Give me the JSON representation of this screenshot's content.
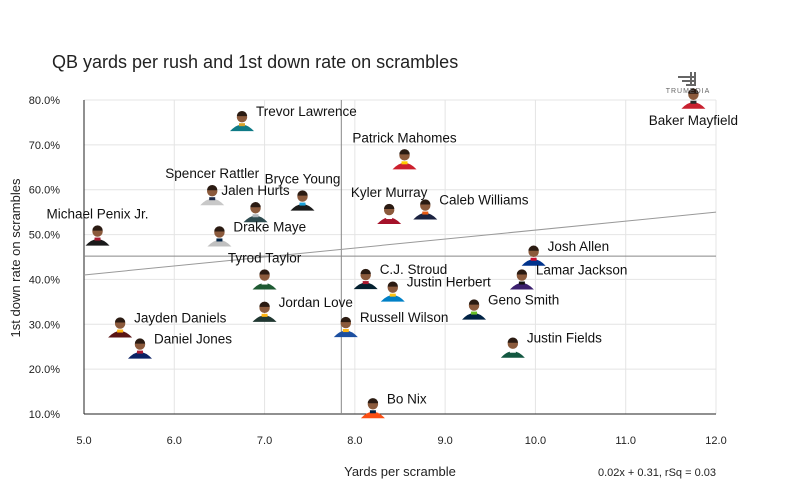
{
  "chart_data": {
    "type": "scatter",
    "title": "QB yards per rush and 1st down rate on scrambles",
    "xlabel": "Yards per scramble",
    "ylabel": "1st down rate on scrambles",
    "xlim": [
      5.0,
      12.0
    ],
    "ylim": [
      10.0,
      80.0
    ],
    "x_ticks": [
      "5.0",
      "6.0",
      "7.0",
      "8.0",
      "9.0",
      "10.0",
      "11.0",
      "12.0"
    ],
    "y_ticks": [
      "10.0%",
      "20.0%",
      "30.0%",
      "40.0%",
      "50.0%",
      "60.0%",
      "70.0%",
      "80.0%"
    ],
    "grid": true,
    "mean_x": 7.85,
    "mean_y": 45.2,
    "regression": {
      "slope": 0.02,
      "intercept": 0.31,
      "rsq": 0.03,
      "text": "0.02x + 0.31, rSq = 0.03"
    },
    "logo_text": "TRUMEDIA",
    "points": [
      {
        "name": "Trevor Lawrence",
        "x": 6.75,
        "y": 75.5,
        "helmet": "#0f7a86",
        "accent": "#d7a22a",
        "label_side": "right"
      },
      {
        "name": "Patrick Mahomes",
        "x": 8.55,
        "y": 67.0,
        "helmet": "#cc1f2d",
        "accent": "#ffcc00",
        "label_side": "above"
      },
      {
        "name": "Baker Mayfield",
        "x": 11.75,
        "y": 80.5,
        "helmet": "#c8202f",
        "accent": "#2a2a2a",
        "label_side": "below"
      },
      {
        "name": "Spencer Rattler",
        "x": 6.42,
        "y": 59.0,
        "helmet": "#c8c8c8",
        "accent": "#1f2c4a",
        "label_side": "above"
      },
      {
        "name": "Bryce Young",
        "x": 7.42,
        "y": 57.8,
        "helmet": "#1b1b1b",
        "accent": "#1aa0d8",
        "label_side": "above"
      },
      {
        "name": "Jalen Hurts",
        "x": 6.9,
        "y": 55.2,
        "helmet": "#2e4b4f",
        "accent": "#b0b7bc",
        "label_side": "above"
      },
      {
        "name": "Kyler Murray",
        "x": 8.38,
        "y": 54.8,
        "helmet": "#a5122a",
        "accent": "#ffffff",
        "label_side": "above"
      },
      {
        "name": "Caleb Williams",
        "x": 8.78,
        "y": 55.8,
        "helmet": "#1a2240",
        "accent": "#e85a13",
        "label_side": "right"
      },
      {
        "name": "Michael Penix Jr.",
        "x": 5.15,
        "y": 50.0,
        "helmet": "#1a1a1a",
        "accent": "#a71930",
        "label_side": "above"
      },
      {
        "name": "Drake Maye",
        "x": 6.5,
        "y": 49.8,
        "helmet": "#c0c0c0",
        "accent": "#002244",
        "label_side": "right"
      },
      {
        "name": "Josh Allen",
        "x": 9.98,
        "y": 45.5,
        "helmet": "#00338d",
        "accent": "#c60c30",
        "label_side": "right"
      },
      {
        "name": "Lamar Jackson",
        "x": 9.85,
        "y": 40.2,
        "helmet": "#3b1f6e",
        "accent": "#111111",
        "label_side": "right"
      },
      {
        "name": "Tyrod Taylor",
        "x": 7.0,
        "y": 40.2,
        "helmet": "#1e5a32",
        "accent": "#ffffff",
        "label_side": "above"
      },
      {
        "name": "C.J. Stroud",
        "x": 8.12,
        "y": 40.3,
        "helmet": "#03202f",
        "accent": "#a71930",
        "label_side": "right"
      },
      {
        "name": "Justin Herbert",
        "x": 8.42,
        "y": 37.5,
        "helmet": "#0080c6",
        "accent": "#ffc20e",
        "label_side": "right"
      },
      {
        "name": "Geno Smith",
        "x": 9.32,
        "y": 33.5,
        "helmet": "#002244",
        "accent": "#69be28",
        "label_side": "right"
      },
      {
        "name": "Jordan Love",
        "x": 7.0,
        "y": 33.0,
        "helmet": "#203731",
        "accent": "#ffb612",
        "label_side": "right"
      },
      {
        "name": "Jayden Daniels",
        "x": 5.4,
        "y": 29.5,
        "helmet": "#5a1414",
        "accent": "#ffb612",
        "label_side": "right"
      },
      {
        "name": "Russell Wilson",
        "x": 7.9,
        "y": 29.6,
        "helmet": "#1c4fa0",
        "accent": "#ffb612",
        "label_side": "right"
      },
      {
        "name": "Daniel Jones",
        "x": 5.62,
        "y": 24.8,
        "helmet": "#0b2265",
        "accent": "#a71930",
        "label_side": "right"
      },
      {
        "name": "Justin Fields",
        "x": 9.75,
        "y": 25.0,
        "helmet": "#125740",
        "accent": "#ffffff",
        "label_side": "right"
      },
      {
        "name": "Bo Nix",
        "x": 8.2,
        "y": 11.5,
        "helmet": "#fb4f14",
        "accent": "#002244",
        "label_side": "right"
      }
    ]
  }
}
